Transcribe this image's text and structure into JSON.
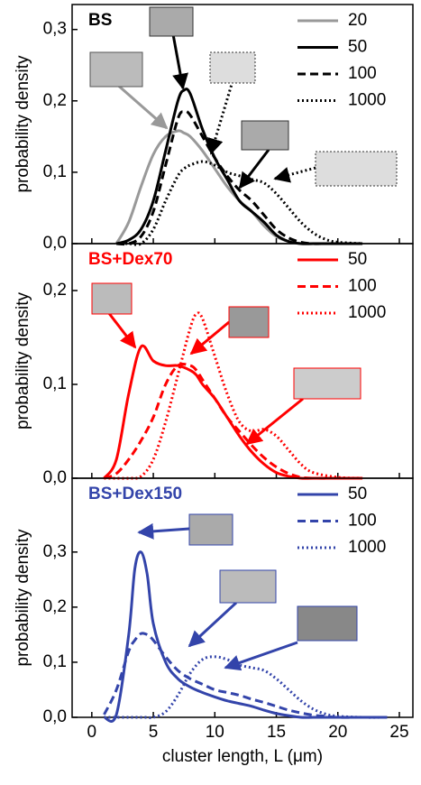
{
  "chart_data": [
    {
      "type": "line",
      "title": "BS",
      "title_color": "#000000",
      "ylabel": "probability density",
      "x": [
        2,
        3,
        4,
        5,
        6,
        7,
        7.5,
        8,
        9,
        10,
        11,
        12,
        13,
        14,
        15,
        16,
        17,
        18,
        19,
        20,
        22
      ],
      "series": [
        {
          "name": "20",
          "color": "#999999",
          "dash": "solid",
          "values": [
            0,
            0.03,
            0.08,
            0.125,
            0.15,
            0.158,
            0.155,
            0.15,
            0.13,
            0.105,
            0.08,
            0.06,
            0.045,
            0.025,
            0.01,
            0.003,
            0,
            0,
            0,
            0,
            0
          ]
        },
        {
          "name": "50",
          "color": "#000000",
          "dash": "solid",
          "values": [
            0,
            0.005,
            0.02,
            0.06,
            0.13,
            0.2,
            0.215,
            0.21,
            0.16,
            0.12,
            0.09,
            0.06,
            0.045,
            0.03,
            0.012,
            0.003,
            0,
            0,
            0,
            0,
            0
          ]
        },
        {
          "name": "100",
          "color": "#000000",
          "dash": "dash",
          "values": [
            0,
            0,
            0.01,
            0.045,
            0.11,
            0.175,
            0.185,
            0.18,
            0.15,
            0.12,
            0.095,
            0.075,
            0.06,
            0.04,
            0.02,
            0.008,
            0.002,
            0,
            0,
            0,
            0
          ]
        },
        {
          "name": "1000",
          "color": "#000000",
          "dash": "dot",
          "values": [
            0,
            0,
            0,
            0.02,
            0.06,
            0.095,
            0.105,
            0.11,
            0.115,
            0.11,
            0.1,
            0.095,
            0.09,
            0.085,
            0.07,
            0.05,
            0.03,
            0.015,
            0.006,
            0.002,
            0
          ]
        }
      ],
      "xlim": [
        -1.6,
        26.1
      ],
      "xticks": [
        0,
        5,
        10,
        15,
        20,
        25
      ],
      "ylim": [
        0,
        0.335
      ],
      "yticks": [
        {
          "value": 0,
          "label": "0,0"
        },
        {
          "value": 0.1,
          "label": "0,1"
        },
        {
          "value": 0.2,
          "label": "0,2"
        },
        {
          "value": 0.3,
          "label": "0,3"
        }
      ]
    },
    {
      "type": "line",
      "title": "BS+Dex70",
      "title_color": "#ff0000",
      "ylabel": "probability density",
      "x": [
        1,
        2,
        3,
        4,
        5,
        6,
        7,
        8,
        8.5,
        9,
        10,
        11,
        12,
        13,
        14,
        15,
        16,
        17,
        18,
        20,
        22
      ],
      "series": [
        {
          "name": "50",
          "color": "#ff0000",
          "dash": "solid",
          "values": [
            0,
            0.02,
            0.09,
            0.14,
            0.125,
            0.12,
            0.12,
            0.115,
            0.11,
            0.1,
            0.085,
            0.065,
            0.045,
            0.028,
            0.015,
            0.006,
            0.002,
            0,
            0,
            0,
            0
          ]
        },
        {
          "name": "100",
          "color": "#ff0000",
          "dash": "dash",
          "values": [
            0,
            0.005,
            0.02,
            0.04,
            0.065,
            0.1,
            0.12,
            0.12,
            0.115,
            0.105,
            0.085,
            0.065,
            0.05,
            0.035,
            0.022,
            0.012,
            0.005,
            0.001,
            0,
            0,
            0
          ]
        },
        {
          "name": "1000",
          "color": "#ff0000",
          "dash": "dot",
          "values": [
            0,
            0,
            0,
            0.002,
            0.02,
            0.06,
            0.11,
            0.16,
            0.175,
            0.17,
            0.13,
            0.09,
            0.06,
            0.05,
            0.052,
            0.045,
            0.03,
            0.015,
            0.006,
            0.001,
            0
          ]
        }
      ],
      "xlim": [
        -1.6,
        26.1
      ],
      "xticks": [
        0,
        5,
        10,
        15,
        20,
        25
      ],
      "ylim": [
        0,
        0.25
      ],
      "yticks": [
        {
          "value": 0,
          "label": "0,0"
        },
        {
          "value": 0.1,
          "label": "0,1"
        },
        {
          "value": 0.2,
          "label": "0,2"
        }
      ]
    },
    {
      "type": "line",
      "title": "BS+Dex150",
      "title_color": "#3344aa",
      "ylabel": "probability density",
      "xlabel": "cluster length, L (μm)",
      "x": [
        1,
        2,
        3,
        3.5,
        4,
        4.5,
        5,
        6,
        7,
        8,
        9,
        10,
        11,
        12,
        13,
        14,
        15,
        16,
        17,
        18,
        19,
        20,
        22,
        24
      ],
      "series": [
        {
          "name": "50",
          "color": "#3344aa",
          "dash": "solid",
          "values": [
            0,
            0.005,
            0.15,
            0.27,
            0.3,
            0.26,
            0.17,
            0.1,
            0.07,
            0.055,
            0.045,
            0.037,
            0.03,
            0.025,
            0.02,
            0.013,
            0.007,
            0.003,
            0,
            0,
            0,
            0,
            0,
            0
          ]
        },
        {
          "name": "100",
          "color": "#3344aa",
          "dash": "dash",
          "values": [
            0.005,
            0.05,
            0.12,
            0.14,
            0.152,
            0.15,
            0.14,
            0.11,
            0.085,
            0.07,
            0.06,
            0.05,
            0.045,
            0.04,
            0.033,
            0.027,
            0.02,
            0.013,
            0.008,
            0.004,
            0.002,
            0,
            0,
            0
          ]
        },
        {
          "name": "1000",
          "color": "#3344aa",
          "dash": "dot",
          "values": [
            0,
            0,
            0,
            0,
            0,
            0,
            0,
            0.01,
            0.04,
            0.08,
            0.105,
            0.11,
            0.105,
            0.095,
            0.09,
            0.085,
            0.07,
            0.05,
            0.03,
            0.015,
            0.006,
            0.002,
            0,
            0
          ]
        }
      ],
      "xlim": [
        -1.6,
        26.1
      ],
      "xticks": [
        0,
        5,
        10,
        15,
        20,
        25
      ],
      "ylim": [
        0,
        0.434
      ],
      "yticks": [
        {
          "value": 0,
          "label": "0,0"
        },
        {
          "value": 0.1,
          "label": "0,1"
        },
        {
          "value": 0.2,
          "label": "0,2"
        },
        {
          "value": 0.3,
          "label": "0,3"
        }
      ]
    }
  ]
}
